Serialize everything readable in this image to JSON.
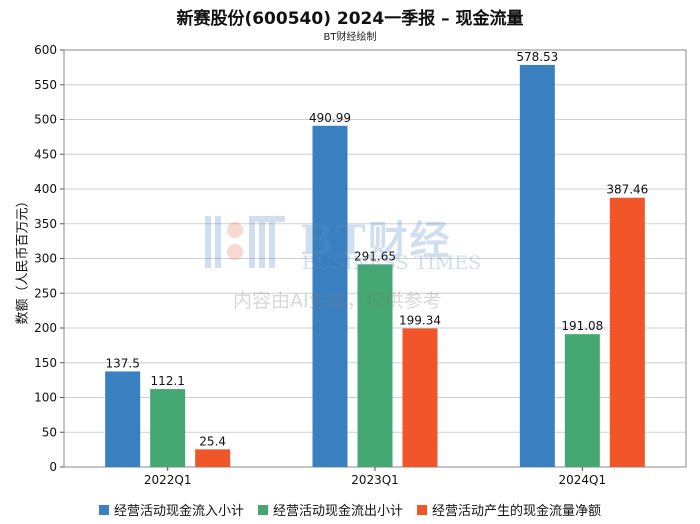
{
  "header": {
    "title": "新赛股份(600540) 2024一季报 – 现金流量",
    "subtitle": "BT财经绘制"
  },
  "watermark": {
    "brand": "BT财经",
    "brand_en": "BUSINESS TIMES",
    "note": "内容由AI生成，仅供参考"
  },
  "chart_data": {
    "type": "bar",
    "title": "新赛股份(600540) 2024一季报 – 现金流量",
    "subtitle": "BT财经绘制",
    "xlabel": "",
    "ylabel": "数额（人民币百万元）",
    "ylim": [
      0,
      600
    ],
    "yticks": [
      0,
      50,
      100,
      150,
      200,
      250,
      300,
      350,
      400,
      450,
      500,
      550,
      600
    ],
    "categories": [
      "2022Q1",
      "2023Q1",
      "2024Q1"
    ],
    "series": [
      {
        "name": "经营活动现金流入小计",
        "color": "#3a80c1",
        "values": [
          137.5,
          490.99,
          578.53
        ],
        "labels": [
          "137.5",
          "490.99",
          "578.53"
        ]
      },
      {
        "name": "经营活动现金流出小计",
        "color": "#45a772",
        "values": [
          112.1,
          291.65,
          191.08
        ],
        "labels": [
          "112.1",
          "291.65",
          "191.08"
        ]
      },
      {
        "name": "经营活动产生的现金流量净额",
        "color": "#f0562a",
        "values": [
          25.4,
          199.34,
          387.46
        ],
        "labels": [
          "25.4",
          "199.34",
          "387.46"
        ]
      }
    ],
    "legend_position": "bottom",
    "grid": true
  }
}
